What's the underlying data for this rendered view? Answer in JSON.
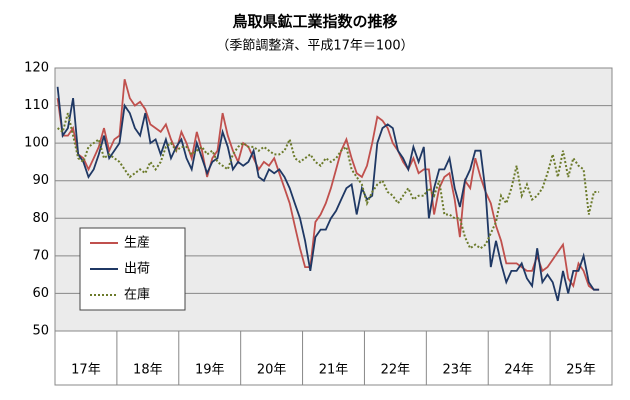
{
  "chart_data": {
    "type": "line",
    "title": "鳥取県鉱工業指数の推移",
    "subtitle": "（季節調整済、平成17年＝100）",
    "groups": [
      "17年",
      "18年",
      "19年",
      "20年",
      "21年",
      "22年",
      "23年",
      "24年",
      "25年"
    ],
    "ylim": [
      50,
      120
    ],
    "yticks": [
      50,
      60,
      70,
      80,
      90,
      100,
      110,
      120
    ],
    "grid": true,
    "legend": "lower left",
    "series": [
      {
        "name": "生産",
        "color": "#c0504d",
        "style": "solid",
        "values": [
          112,
          102,
          102,
          104,
          97,
          96,
          93,
          96,
          99,
          104,
          98,
          101,
          102,
          117,
          112,
          110,
          111,
          109,
          105,
          104,
          103,
          105,
          101,
          98,
          103,
          100,
          96,
          103,
          98,
          91,
          96,
          98,
          108,
          102,
          98,
          95,
          100,
          99,
          96,
          93,
          95,
          94,
          96,
          92,
          88,
          84,
          78,
          72,
          67,
          67,
          79,
          81,
          84,
          88,
          93,
          98,
          101,
          96,
          92,
          91,
          94,
          100,
          107,
          106,
          104,
          100,
          98,
          95,
          93,
          96,
          92,
          93,
          93,
          81,
          88,
          91,
          92,
          85,
          75,
          90,
          88,
          96,
          91,
          87,
          84,
          78,
          74,
          68,
          68,
          68,
          67,
          66,
          66,
          70,
          66,
          67,
          69,
          71,
          73,
          64,
          62,
          68,
          66,
          62,
          61,
          61
        ]
      },
      {
        "name": "出荷",
        "color": "#1f3864",
        "style": "solid",
        "values": [
          115,
          102,
          104,
          112,
          97,
          95,
          91,
          93,
          97,
          102,
          96,
          98,
          100,
          110,
          108,
          104,
          102,
          108,
          100,
          101,
          97,
          101,
          96,
          99,
          101,
          96,
          93,
          100,
          96,
          92,
          95,
          96,
          103,
          99,
          93,
          95,
          94,
          95,
          98,
          91,
          90,
          93,
          92,
          93,
          91,
          88,
          84,
          80,
          74,
          66,
          75,
          77,
          77,
          80,
          82,
          85,
          88,
          89,
          81,
          88,
          85,
          86,
          100,
          104,
          105,
          104,
          98,
          96,
          93,
          99,
          95,
          99,
          80,
          88,
          93,
          93,
          96,
          88,
          83,
          90,
          93,
          98,
          98,
          87,
          67,
          74,
          68,
          63,
          66,
          66,
          68,
          64,
          62,
          72,
          63,
          65,
          63,
          58,
          66,
          60,
          66,
          66,
          70,
          63,
          61,
          61
        ]
      },
      {
        "name": "在庫",
        "color": "#6b7a2a",
        "style": "dotted",
        "values": [
          104,
          103,
          108,
          102,
          96,
          95,
          99,
          100,
          101,
          96,
          97,
          96,
          95,
          93,
          91,
          92,
          93,
          92,
          95,
          93,
          95,
          99,
          100,
          98,
          99,
          99,
          97,
          98,
          99,
          97,
          98,
          95,
          94,
          93,
          97,
          99,
          100,
          99,
          99,
          98,
          99,
          98,
          97,
          97,
          98,
          101,
          96,
          95,
          96,
          97,
          95,
          94,
          96,
          95,
          96,
          98,
          99,
          93,
          91,
          89,
          84,
          87,
          89,
          90,
          87,
          86,
          84,
          86,
          88,
          85,
          86,
          86,
          88,
          86,
          90,
          81,
          81,
          80,
          80,
          75,
          72,
          73,
          72,
          73,
          76,
          79,
          86,
          84,
          88,
          94,
          86,
          89,
          85,
          86,
          88,
          92,
          97,
          91,
          98,
          91,
          96,
          94,
          93,
          81,
          87,
          87
        ]
      }
    ]
  }
}
